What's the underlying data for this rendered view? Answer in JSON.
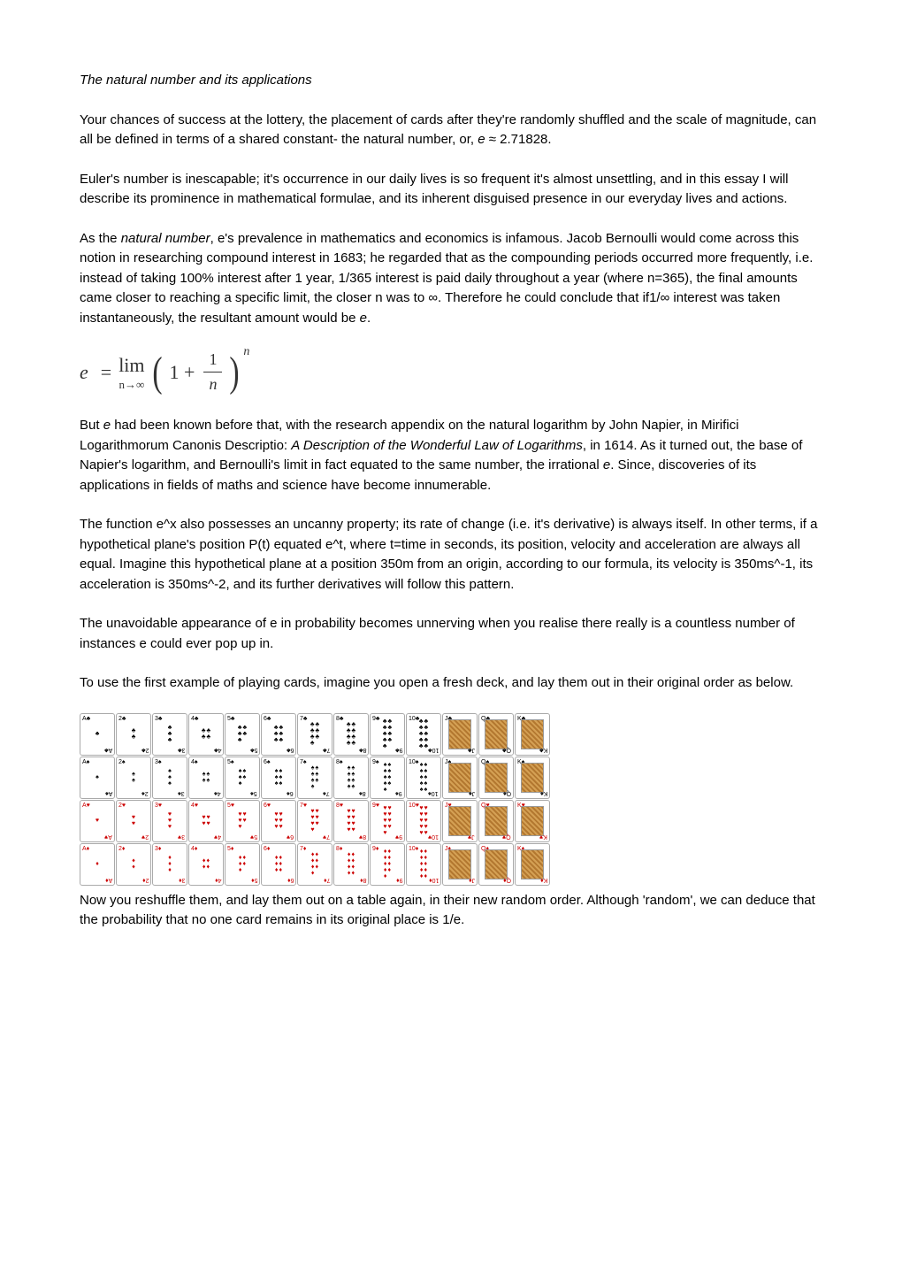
{
  "title": "The natural number and its applications",
  "p1": "Your chances of success at the lottery, the placement of cards after they're randomly shuffled and the scale of magnitude, can all be defined in terms of a shared constant- the natural number, or, ",
  "p1_e": "e",
  "p1_approx": " ≈ 2.71828.",
  "p2": "Euler's number is inescapable; it's occurrence in our daily lives is so frequent it's almost unsettling, and in this essay I will describe its prominence in mathematical formulae, and its inherent disguised presence in our everyday lives and actions.",
  "p3_a": "As the ",
  "p3_b": "natural number",
  "p3_c": ", e's prevalence in mathematics and economics is infamous. Jacob Bernoulli would come across this notion in researching compound interest in 1683; he regarded that as the compounding periods occurred more frequently, i.e. instead of taking 100% interest after 1 year, 1/365 interest is paid daily throughout a year (where n=365), the final amounts came closer to reaching a specific limit, the closer n was to ∞. Therefore he could conclude that if1/∞ interest was taken instantaneously, the resultant amount would be ",
  "p3_d": "e",
  "p3_e": ".",
  "formula": {
    "lhs": "e",
    "equals": "=",
    "lim": "lim",
    "lim_sub": "n→∞",
    "lparen": "(",
    "one": "1 +",
    "frac_top": "1",
    "frac_bot": "n",
    "rparen": ")",
    "exp": "n"
  },
  "p4_a": "But ",
  "p4_b": "e",
  "p4_c": " had been known before that, with the research appendix on the natural logarithm by John Napier, in Mirifici Logarithmorum Canonis Descriptio: ",
  "p4_d": "A Description of the Wonderful Law of Logarithms",
  "p4_e": ", in 1614. As it turned out, the base of Napier's logarithm, and Bernoulli's limit in fact equated to the same number, the irrational ",
  "p4_f": "e",
  "p4_g": ". Since, discoveries of its applications in fields of maths and science have become innumerable.",
  "p5": "The function e^x also possesses an uncanny property; its rate of change (i.e. it's derivative) is always itself. In other terms, if a hypothetical plane's position P(t) equated e^t, where t=time in seconds, its position, velocity and acceleration are always all equal. Imagine this hypothetical plane at a position 350m from an origin, according to our formula, its velocity is 350ms^-1, its acceleration is 350ms^-2, and its further derivatives will follow this pattern.",
  "p6": "The unavoidable appearance of e in probability becomes unnerving when you realise there really is a countless number of instances e could ever pop up in.",
  "p7": "To use the first example of playing cards, imagine you open a fresh deck, and lay them out in their original order as below.",
  "p8": "Now you reshuffle them, and lay them out on a table again, in their new random order. Although 'random', we can deduce that the probability that no one card remains in its original place is 1/e.",
  "cards": {
    "suits": [
      {
        "name": "clubs",
        "symbol": "♣",
        "color": "black"
      },
      {
        "name": "spades",
        "symbol": "♠",
        "color": "black"
      },
      {
        "name": "hearts",
        "symbol": "♥",
        "color": "red"
      },
      {
        "name": "diamonds",
        "symbol": "♦",
        "color": "red"
      }
    ],
    "ranks": [
      "A",
      "2",
      "3",
      "4",
      "5",
      "6",
      "7",
      "8",
      "9",
      "10",
      "J",
      "Q",
      "K"
    ],
    "face_bg": "#d4a054",
    "border_color": "#aaaaaa"
  },
  "colors": {
    "text": "#000000",
    "bg": "#ffffff",
    "red_suit": "#cc0000",
    "formula": "#333333"
  }
}
